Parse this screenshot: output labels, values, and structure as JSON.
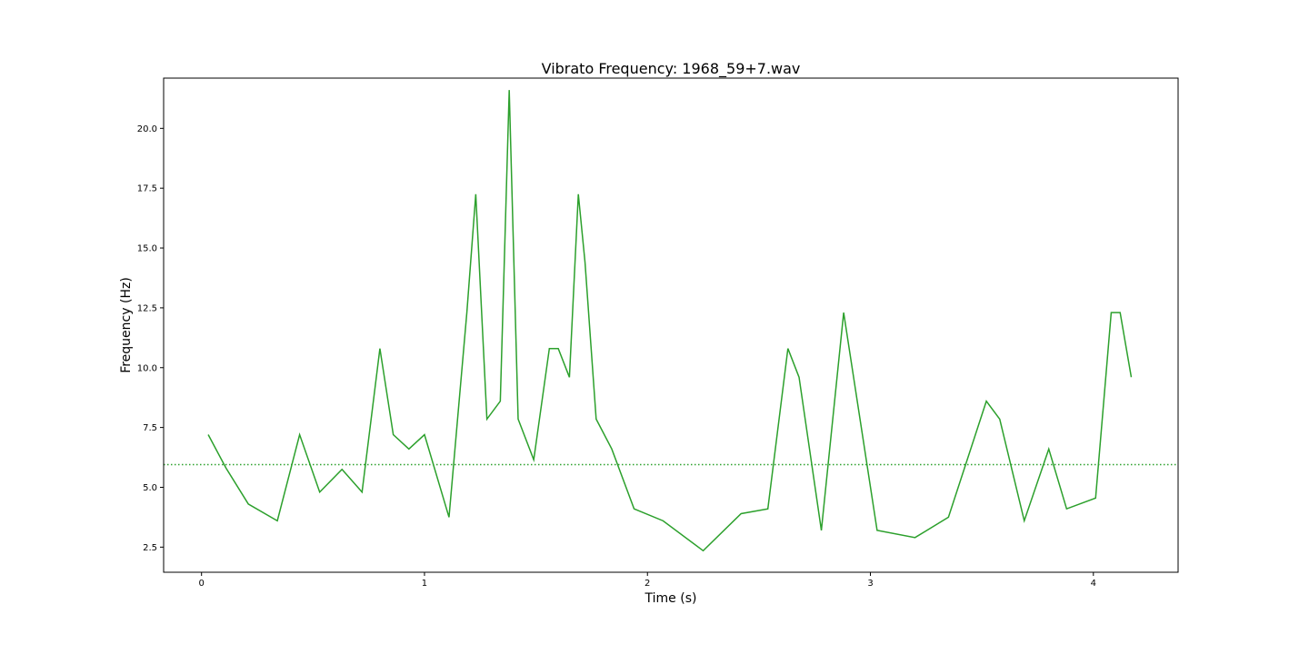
{
  "chart_data": {
    "type": "line",
    "title": "Vibrato Frequency: 1968_59+7.wav",
    "xlabel": "Time (s)",
    "ylabel": "Frequency (Hz)",
    "xlim": [
      -0.17,
      4.38
    ],
    "ylim": [
      1.45,
      22.1
    ],
    "x_ticks": [
      {
        "value": 0,
        "label": "0"
      },
      {
        "value": 1,
        "label": "1"
      },
      {
        "value": 2,
        "label": "2"
      },
      {
        "value": 3,
        "label": "3"
      },
      {
        "value": 4,
        "label": "4"
      }
    ],
    "y_ticks": [
      {
        "value": 2.5,
        "label": "2.5"
      },
      {
        "value": 5.0,
        "label": "5.0"
      },
      {
        "value": 7.5,
        "label": "7.5"
      },
      {
        "value": 10.0,
        "label": "10.0"
      },
      {
        "value": 12.5,
        "label": "12.5"
      },
      {
        "value": 15.0,
        "label": "15.0"
      },
      {
        "value": 17.5,
        "label": "17.5"
      },
      {
        "value": 20.0,
        "label": "20.0"
      }
    ],
    "grid": false,
    "series": [
      {
        "color": "#2ca02c",
        "style": "solid",
        "x": [
          0.03,
          0.11,
          0.21,
          0.34,
          0.44,
          0.53,
          0.63,
          0.72,
          0.8,
          0.86,
          0.93,
          1.0,
          1.11,
          1.19,
          1.23,
          1.28,
          1.34,
          1.38,
          1.42,
          1.49,
          1.56,
          1.6,
          1.65,
          1.69,
          1.72,
          1.77,
          1.84,
          1.94,
          2.07,
          2.25,
          2.42,
          2.54,
          2.63,
          2.68,
          2.78,
          2.88,
          3.03,
          3.2,
          3.35,
          3.52,
          3.58,
          3.69,
          3.8,
          3.88,
          4.01,
          4.08,
          4.12,
          4.17
        ],
        "y": [
          7.2,
          5.8,
          4.3,
          3.6,
          7.2,
          4.8,
          5.75,
          4.8,
          10.8,
          7.2,
          6.6,
          7.2,
          3.75,
          12.3,
          17.25,
          7.85,
          8.6,
          21.6,
          7.85,
          6.15,
          10.8,
          10.8,
          9.6,
          17.25,
          14.4,
          7.85,
          6.6,
          4.1,
          3.6,
          2.35,
          3.9,
          4.1,
          10.8,
          9.6,
          3.2,
          12.3,
          3.2,
          2.9,
          3.75,
          8.6,
          7.85,
          3.6,
          6.6,
          4.1,
          4.55,
          12.3,
          12.3,
          9.6
        ]
      },
      {
        "color": "#2ca02c",
        "style": "dotted",
        "y_const": 5.95
      }
    ]
  }
}
